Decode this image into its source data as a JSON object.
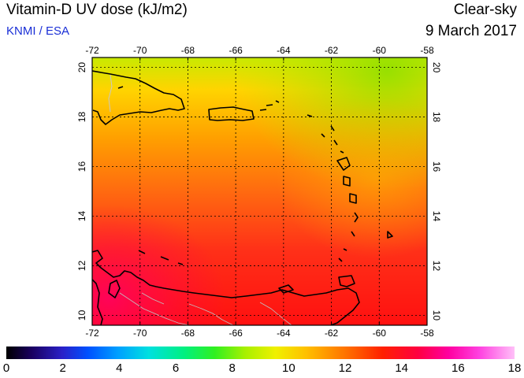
{
  "header": {
    "title": "Vitamin-D UV dose (kJ/m2)",
    "organization": "KNMI / ESA",
    "mode": "Clear-sky",
    "date": "9 March 2017"
  },
  "map": {
    "lon_labels": [
      "-72",
      "-70",
      "-68",
      "-66",
      "-64",
      "-62",
      "-60",
      "-58"
    ],
    "lat_labels": [
      "20",
      "18",
      "16",
      "14",
      "12",
      "10"
    ],
    "lon_range": [
      -72,
      -58
    ],
    "lat_range": [
      9.6,
      20.4
    ],
    "grid": true,
    "region_colors": {
      "north": "#b8e600",
      "central": "#ff7a10",
      "south": "#ff1820",
      "southwest": "#ff0058"
    }
  },
  "colorbar": {
    "labels": [
      "0",
      "2",
      "4",
      "6",
      "8",
      "10",
      "12",
      "14",
      "16",
      "18"
    ],
    "range": [
      0,
      18
    ]
  }
}
